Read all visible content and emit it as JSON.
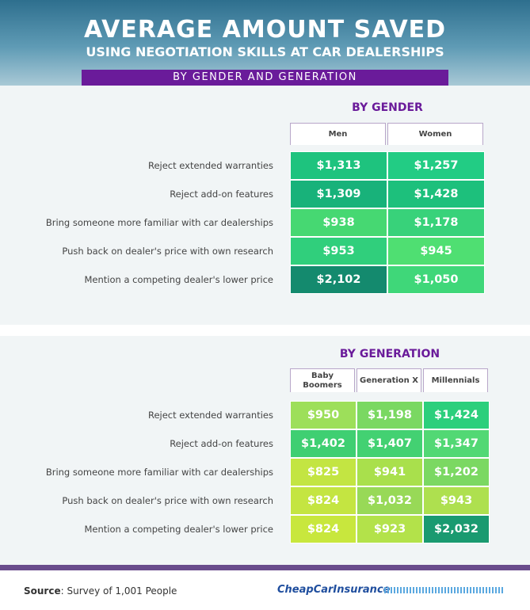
{
  "header": {
    "title": "AVERAGE AMOUNT SAVED",
    "subtitle": "USING NEGOTIATION SKILLS AT CAR DEALERSHIPS",
    "band": "BY GENDER AND GENERATION"
  },
  "sections": [
    {
      "heading": "BY GENDER",
      "columns": [
        "Men",
        "Women"
      ],
      "rows": [
        {
          "label": "Reject extended warranties",
          "cells": [
            "$1,313",
            "$1,257"
          ]
        },
        {
          "label": "Reject add-on features",
          "cells": [
            "$1,309",
            "$1,428"
          ]
        },
        {
          "label": "Bring someone more familiar with car dealerships",
          "cells": [
            "$938",
            "$1,178"
          ]
        },
        {
          "label": "Push back on dealer's price with own research",
          "cells": [
            "$953",
            "$945"
          ]
        },
        {
          "label": "Mention a competing dealer's lower price",
          "cells": [
            "$2,102",
            "$1,050"
          ]
        }
      ],
      "cell_colors": [
        [
          "#1ec37e",
          "#22cc84"
        ],
        [
          "#18b27a",
          "#1dc07c"
        ],
        [
          "#46d872",
          "#38d27a"
        ],
        [
          "#30cf7c",
          "#4fdf72"
        ],
        [
          "#148a6e",
          "#3fd779"
        ]
      ]
    },
    {
      "heading": "BY GENERATION",
      "columns": [
        "Baby Boomers",
        "Generation X",
        "Millennials"
      ],
      "rows": [
        {
          "label": "Reject extended warranties",
          "cells": [
            "$950",
            "$1,198",
            "$1,424"
          ]
        },
        {
          "label": "Reject add-on features",
          "cells": [
            "$1,402",
            "$1,407",
            "$1,347"
          ]
        },
        {
          "label": "Bring someone more familiar with car dealerships",
          "cells": [
            "$825",
            "$941",
            "$1,202"
          ]
        },
        {
          "label": "Push back on dealer's price with own research",
          "cells": [
            "$824",
            "$1,032",
            "$943"
          ]
        },
        {
          "label": "Mention a competing dealer's lower price",
          "cells": [
            "$824",
            "$923",
            "$2,032"
          ]
        }
      ],
      "cell_colors": [
        [
          "#9ddf5a",
          "#7ad862",
          "#2ccf7c"
        ],
        [
          "#3fcf72",
          "#43d172",
          "#52d874"
        ],
        [
          "#c3e542",
          "#a9e04c",
          "#7bd862"
        ],
        [
          "#c4e541",
          "#98d957",
          "#aee04f"
        ],
        [
          "#c8e73d",
          "#b3e24a",
          "#1a9a70"
        ]
      ]
    }
  ],
  "footer": {
    "source_label": "Source",
    "source_text": ": Survey of 1,001 People",
    "logo": "CheapCarInsurance"
  }
}
